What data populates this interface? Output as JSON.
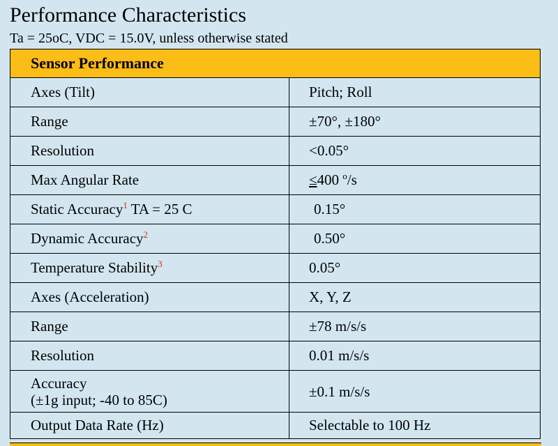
{
  "title": "Performance Characteristics",
  "subtitle": "Ta = 25oC, VDC = 15.0V, unless otherwise stated",
  "table": {
    "section_header": "Sensor Performance",
    "rows": [
      {
        "label": "Axes (Tilt)",
        "value": "Pitch; Roll"
      },
      {
        "label": "Range",
        "value": "±70°, ±180°"
      },
      {
        "label": "Resolution",
        "value": "<0.05°"
      },
      {
        "label": "Max Angular Rate",
        "value_prefix": "≤",
        "value_main": "400 ",
        "value_sup": "o",
        "value_suffix": "/s"
      },
      {
        "label": "Static Accuracy",
        "footnote": "1",
        "label_suffix": " TA = 25 C",
        "value": "0.15°"
      },
      {
        "label": "Dynamic Accuracy",
        "footnote": "2",
        "value": "0.50°"
      },
      {
        "label": "Temperature Stability",
        "footnote": "3",
        "value": "0.05°"
      },
      {
        "label": "Axes (Acceleration)",
        "value": "X, Y, Z"
      },
      {
        "label": "Range",
        "value": "±78 m/s/s"
      },
      {
        "label": "Resolution",
        "value": "0.01 m/s/s"
      },
      {
        "label": "Accuracy",
        "label_line2": "(±1g input; -40 to 85C)",
        "value": "±0.1 m/s/s"
      },
      {
        "label": "Output Data Rate (Hz)",
        "value": "Selectable to 100 Hz"
      }
    ]
  },
  "colors": {
    "background": "#d3e6f0",
    "header_fill": "#fcbd16",
    "footnote": "#e0241a"
  }
}
